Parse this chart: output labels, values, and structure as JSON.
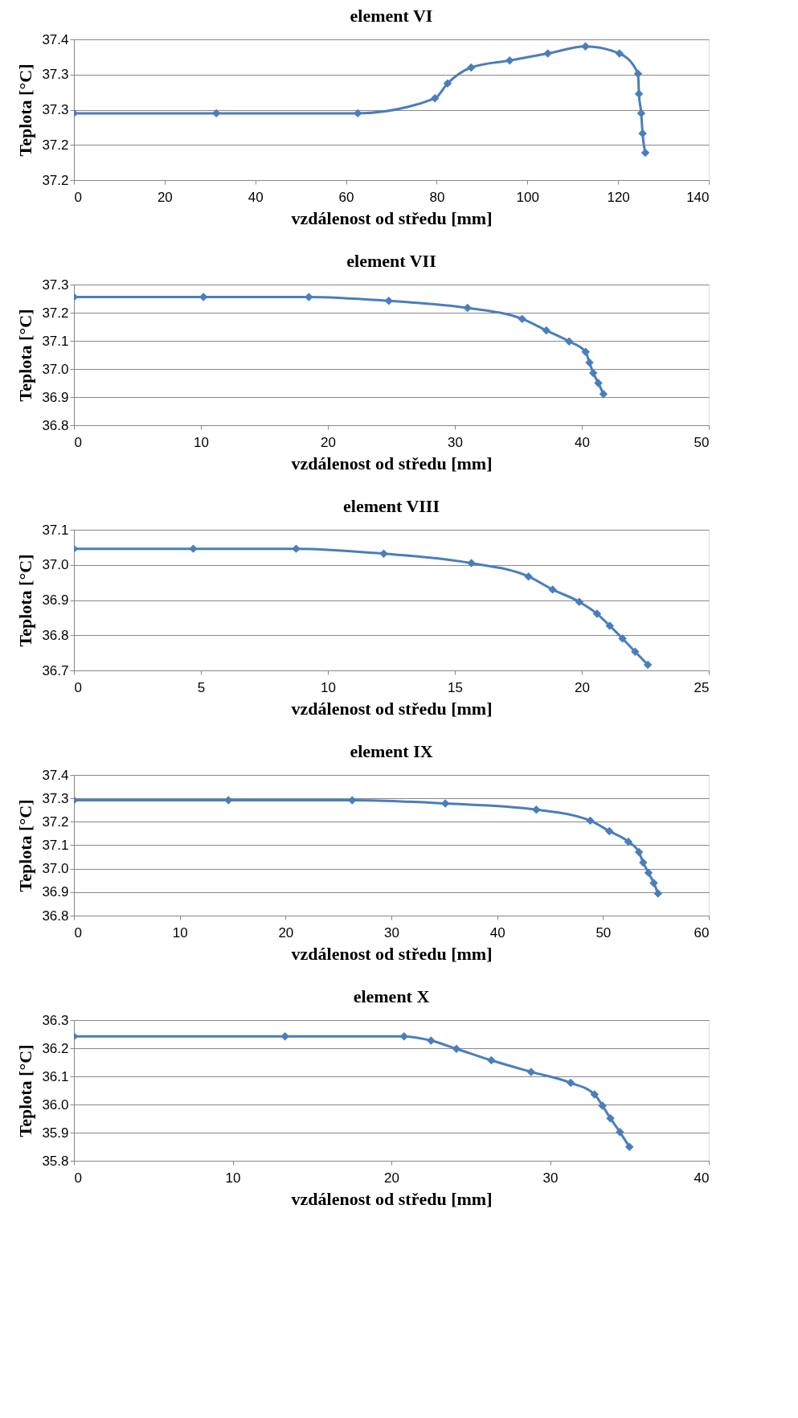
{
  "chart_data": [
    {
      "type": "line",
      "title": "element VI",
      "xlabel": "vzdálenost od středu [mm]",
      "ylabel": "Teplota [°C]",
      "grid": "y",
      "marker": "diamond",
      "line_style": "solid",
      "xlim": [
        0,
        140
      ],
      "xticks": [
        0,
        20,
        40,
        60,
        80,
        100,
        120,
        140
      ],
      "ylim": [
        37.2,
        37.36
      ],
      "yticks": [
        {
          "value": 37.2,
          "label": "37.2"
        },
        {
          "value": 37.24,
          "label": "37.2"
        },
        {
          "value": 37.28,
          "label": "37.3"
        },
        {
          "value": 37.32,
          "label": "37.3"
        },
        {
          "value": 37.36,
          "label": "37.4"
        }
      ],
      "x": [
        0,
        31.4,
        62.6,
        79.6,
        82.4,
        87.6,
        96.1,
        104.5,
        112.8,
        120.3,
        124.4,
        124.6,
        125.1,
        125.4,
        126.0
      ],
      "series": [
        {
          "color": "#4a7ebb",
          "values": [
            37.276,
            37.276,
            37.276,
            37.293,
            37.31,
            37.328,
            37.336,
            37.344,
            37.352,
            37.344,
            37.321,
            37.298,
            37.276,
            37.253,
            37.231
          ]
        }
      ]
    },
    {
      "type": "line",
      "title": "element VII",
      "xlabel": "vzdálenost od středu [mm]",
      "ylabel": "Teplota [°C]",
      "grid": "y",
      "marker": "diamond",
      "line_style": "solid",
      "xlim": [
        0,
        50
      ],
      "xticks": [
        0,
        10,
        20,
        30,
        40,
        50
      ],
      "ylim": [
        36.8,
        37.3
      ],
      "yticks": [
        {
          "value": 36.8,
          "label": "36.8"
        },
        {
          "value": 36.9,
          "label": "36.9"
        },
        {
          "value": 37.0,
          "label": "37.0"
        },
        {
          "value": 37.1,
          "label": "37.1"
        },
        {
          "value": 37.2,
          "label": "37.2"
        },
        {
          "value": 37.3,
          "label": "37.3"
        }
      ],
      "x": [
        0,
        10.2,
        18.5,
        24.8,
        31.0,
        35.3,
        37.2,
        39.0,
        40.3,
        40.6,
        40.9,
        41.3,
        41.7
      ],
      "series": [
        {
          "color": "#4a7ebb",
          "values": [
            37.256,
            37.256,
            37.256,
            37.242,
            37.217,
            37.178,
            37.137,
            37.098,
            37.061,
            37.023,
            36.986,
            36.95,
            36.911
          ]
        }
      ]
    },
    {
      "type": "line",
      "title": "element VIII",
      "xlabel": "vzdálenost od středu [mm]",
      "ylabel": "Teplota [°C]",
      "grid": "y",
      "marker": "diamond",
      "line_style": "solid",
      "xlim": [
        0,
        25
      ],
      "xticks": [
        0,
        5,
        10,
        15,
        20,
        25
      ],
      "ylim": [
        36.7,
        37.1
      ],
      "yticks": [
        {
          "value": 36.7,
          "label": "36.7"
        },
        {
          "value": 36.8,
          "label": "36.8"
        },
        {
          "value": 36.9,
          "label": "36.9"
        },
        {
          "value": 37.0,
          "label": "37.0"
        },
        {
          "value": 37.1,
          "label": "37.1"
        }
      ],
      "x": [
        0,
        4.7,
        8.75,
        12.2,
        15.65,
        17.9,
        18.85,
        19.9,
        20.6,
        21.1,
        21.6,
        22.1,
        22.6
      ],
      "series": [
        {
          "color": "#4a7ebb",
          "values": [
            37.046,
            37.046,
            37.046,
            37.032,
            37.005,
            36.967,
            36.93,
            36.895,
            36.861,
            36.827,
            36.791,
            36.753,
            36.716
          ]
        }
      ]
    },
    {
      "type": "line",
      "title": "element IX",
      "xlabel": "vzdálenost od středu [mm]",
      "ylabel": "Teplota [°C]",
      "grid": "y",
      "marker": "diamond",
      "line_style": "solid",
      "xlim": [
        0,
        60
      ],
      "xticks": [
        0,
        10,
        20,
        30,
        40,
        50,
        60
      ],
      "ylim": [
        36.8,
        37.4
      ],
      "yticks": [
        {
          "value": 36.8,
          "label": "36.8"
        },
        {
          "value": 36.9,
          "label": "36.9"
        },
        {
          "value": 37.0,
          "label": "37.0"
        },
        {
          "value": 37.1,
          "label": "37.1"
        },
        {
          "value": 37.2,
          "label": "37.2"
        },
        {
          "value": 37.3,
          "label": "37.3"
        },
        {
          "value": 37.4,
          "label": "37.4"
        }
      ],
      "x": [
        0,
        14.6,
        26.3,
        35.1,
        43.7,
        48.8,
        50.6,
        52.4,
        53.4,
        53.8,
        54.3,
        54.8,
        55.2
      ],
      "series": [
        {
          "color": "#4a7ebb",
          "values": [
            37.292,
            37.292,
            37.292,
            37.278,
            37.252,
            37.205,
            37.16,
            37.115,
            37.071,
            37.026,
            36.983,
            36.939,
            36.894
          ]
        }
      ]
    },
    {
      "type": "line",
      "title": "element X",
      "xlabel": "vzdálenost od středu [mm]",
      "ylabel": "Teplota [°C]",
      "grid": "y",
      "marker": "diamond",
      "line_style": "solid",
      "xlim": [
        0,
        40
      ],
      "xticks": [
        0,
        10,
        20,
        30,
        40
      ],
      "ylim": [
        35.8,
        36.3
      ],
      "yticks": [
        {
          "value": 35.8,
          "label": "35.8"
        },
        {
          "value": 35.9,
          "label": "35.9"
        },
        {
          "value": 36.0,
          "label": "36.0"
        },
        {
          "value": 36.1,
          "label": "36.1"
        },
        {
          "value": 36.2,
          "label": "36.2"
        },
        {
          "value": 36.3,
          "label": "36.3"
        }
      ],
      "x": [
        0,
        13.3,
        20.8,
        22.5,
        24.1,
        26.3,
        28.8,
        31.3,
        32.8,
        33.3,
        33.8,
        34.4,
        35.0
      ],
      "series": [
        {
          "color": "#4a7ebb",
          "values": [
            36.242,
            36.242,
            36.242,
            36.227,
            36.198,
            36.157,
            36.116,
            36.077,
            36.036,
            35.996,
            35.951,
            35.902,
            35.849
          ]
        }
      ]
    }
  ]
}
